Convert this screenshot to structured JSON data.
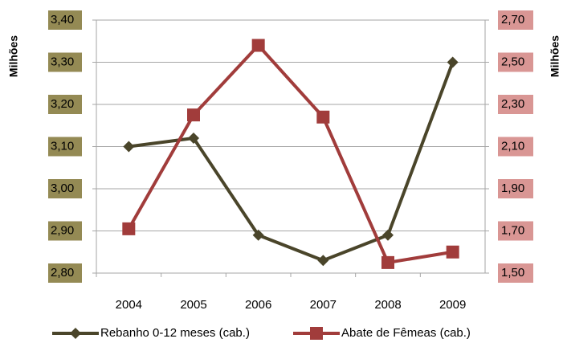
{
  "chart_data": {
    "type": "line",
    "categories": [
      "2004",
      "2005",
      "2006",
      "2007",
      "2008",
      "2009"
    ],
    "y_axis_label": "Milhões",
    "y2_axis_label": "Milhões",
    "ylim": [
      2.8,
      3.4
    ],
    "yticks": [
      {
        "value": 2.8,
        "label": "2,80"
      },
      {
        "value": 2.9,
        "label": "2,90"
      },
      {
        "value": 3.0,
        "label": "3,00"
      },
      {
        "value": 3.1,
        "label": "3,10"
      },
      {
        "value": 3.2,
        "label": "3,20"
      },
      {
        "value": 3.3,
        "label": "3,30"
      },
      {
        "value": 3.4,
        "label": "3,40"
      }
    ],
    "y2lim": [
      1.5,
      2.7
    ],
    "y2ticks": [
      {
        "value": 1.5,
        "label": "1,50"
      },
      {
        "value": 1.7,
        "label": "1,70"
      },
      {
        "value": 1.9,
        "label": "1,90"
      },
      {
        "value": 2.1,
        "label": "2,10"
      },
      {
        "value": 2.3,
        "label": "2,30"
      },
      {
        "value": 2.5,
        "label": "2,50"
      },
      {
        "value": 2.7,
        "label": "2,70"
      }
    ],
    "ytick_background": "#948a54",
    "y2tick_background": "#d99694",
    "grid": true,
    "legend": "bottom",
    "series": [
      {
        "name": "Rebanho 0-12 meses (cab.)",
        "color": "#4a452a",
        "marker": "diamond",
        "values": [
          3.1,
          3.12,
          2.89,
          2.83,
          2.89,
          3.3
        ]
      },
      {
        "name": "Abate de Fêmeas (cab.)",
        "color": "#a13c3b",
        "marker": "square",
        "axis": "y2",
        "values": [
          1.71,
          2.25,
          2.58,
          2.24,
          1.55,
          1.6
        ]
      }
    ]
  }
}
